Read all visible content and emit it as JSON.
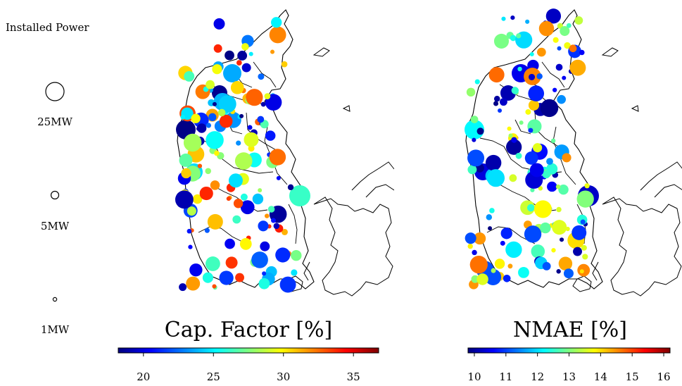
{
  "legend": {
    "title": "Installed Power",
    "entries": [
      {
        "label": "25MW",
        "mw": 25
      },
      {
        "label": "5MW",
        "mw": 5
      },
      {
        "label": "1MW",
        "mw": 1
      }
    ]
  },
  "panels": [
    {
      "id": "capacity-factor",
      "colorbar_title": "Cap. Factor [%]",
      "range": [
        18.2,
        36.8
      ],
      "ticks": [
        "20",
        "25",
        "30",
        "35"
      ],
      "tick_values": [
        20,
        25,
        30,
        35
      ]
    },
    {
      "id": "nmae",
      "colorbar_title": "NMAE [%]",
      "range": [
        9.8,
        16.2
      ],
      "ticks": [
        "10",
        "11",
        "12",
        "13",
        "14",
        "15",
        "16"
      ],
      "tick_values": [
        10,
        11,
        12,
        13,
        14,
        15,
        16
      ]
    }
  ],
  "colormap": [
    "#00007f",
    "#0000ff",
    "#007fff",
    "#00ffff",
    "#7fff7f",
    "#ffff00",
    "#ff7f00",
    "#ff0000",
    "#7f0000"
  ]
}
